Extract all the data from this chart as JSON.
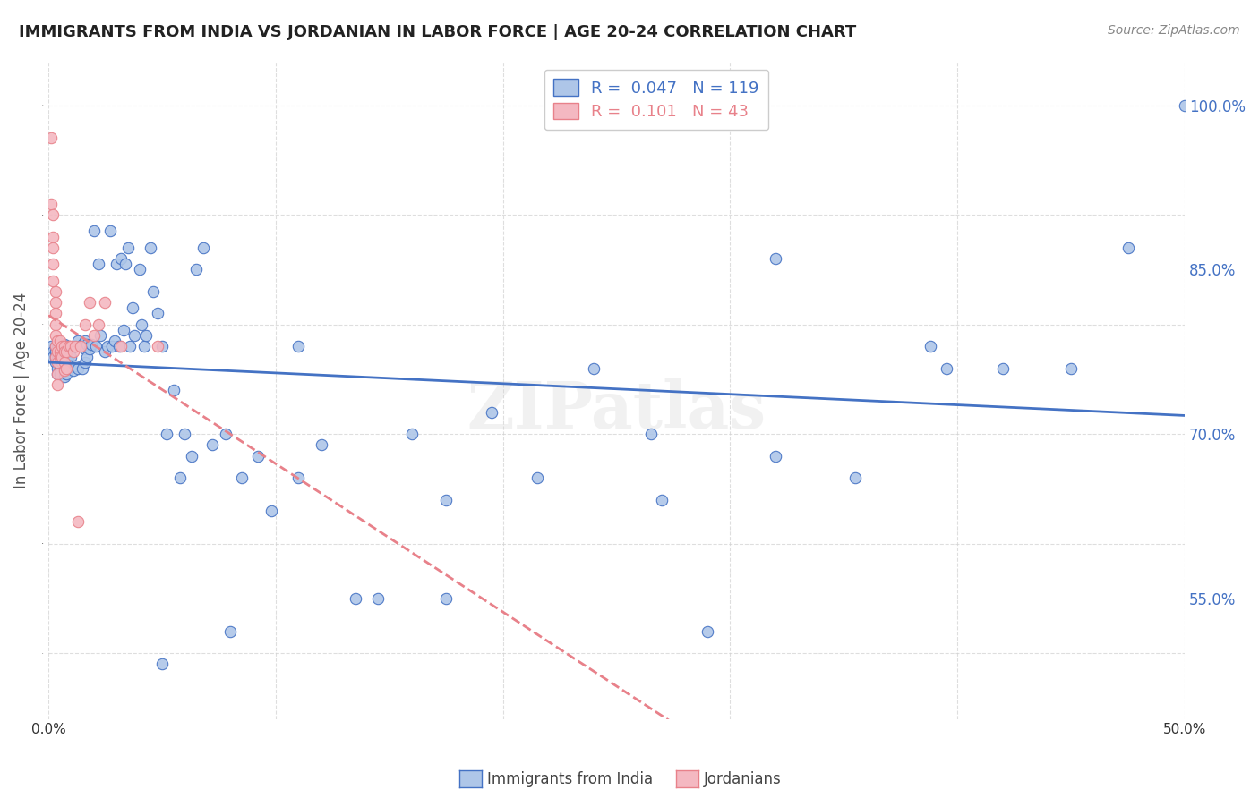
{
  "title": "IMMIGRANTS FROM INDIA VS JORDANIAN IN LABOR FORCE | AGE 20-24 CORRELATION CHART",
  "source": "Source: ZipAtlas.com",
  "ylabel": "In Labor Force | Age 20-24",
  "x_range": [
    0.0,
    0.5
  ],
  "y_range": [
    0.44,
    1.04
  ],
  "r_india": 0.047,
  "n_india": 119,
  "r_jordan": 0.101,
  "n_jordan": 43,
  "color_india": "#aec6e8",
  "color_jordan": "#f4b8c1",
  "line_color_india": "#4472c4",
  "line_color_jordan": "#e8818a",
  "legend_label_india": "Immigrants from India",
  "legend_label_jordan": "Jordanians",
  "background_color": "#ffffff",
  "grid_color": "#d0d0d0",
  "india_x": [
    0.001,
    0.002,
    0.002,
    0.003,
    0.003,
    0.003,
    0.003,
    0.004,
    0.004,
    0.004,
    0.004,
    0.004,
    0.004,
    0.005,
    0.005,
    0.005,
    0.005,
    0.005,
    0.005,
    0.006,
    0.006,
    0.006,
    0.006,
    0.007,
    0.007,
    0.007,
    0.007,
    0.007,
    0.007,
    0.008,
    0.008,
    0.008,
    0.008,
    0.008,
    0.009,
    0.009,
    0.009,
    0.01,
    0.01,
    0.01,
    0.011,
    0.011,
    0.012,
    0.012,
    0.013,
    0.013,
    0.014,
    0.015,
    0.015,
    0.016,
    0.016,
    0.016,
    0.017,
    0.017,
    0.018,
    0.019,
    0.02,
    0.021,
    0.022,
    0.023,
    0.025,
    0.026,
    0.027,
    0.028,
    0.029,
    0.03,
    0.031,
    0.032,
    0.033,
    0.034,
    0.035,
    0.036,
    0.037,
    0.038,
    0.04,
    0.041,
    0.042,
    0.043,
    0.045,
    0.046,
    0.048,
    0.05,
    0.052,
    0.055,
    0.058,
    0.06,
    0.063,
    0.065,
    0.068,
    0.072,
    0.078,
    0.085,
    0.092,
    0.098,
    0.11,
    0.12,
    0.135,
    0.145,
    0.16,
    0.175,
    0.195,
    0.215,
    0.24,
    0.265,
    0.29,
    0.32,
    0.355,
    0.388,
    0.42,
    0.45,
    0.475,
    0.5,
    0.32,
    0.395,
    0.27,
    0.175,
    0.11,
    0.08,
    0.05
  ],
  "india_y": [
    0.78,
    0.775,
    0.77,
    0.78,
    0.775,
    0.77,
    0.765,
    0.782,
    0.778,
    0.773,
    0.768,
    0.76,
    0.755,
    0.782,
    0.778,
    0.773,
    0.768,
    0.76,
    0.755,
    0.782,
    0.778,
    0.773,
    0.765,
    0.782,
    0.775,
    0.77,
    0.765,
    0.758,
    0.752,
    0.78,
    0.775,
    0.77,
    0.762,
    0.755,
    0.78,
    0.772,
    0.765,
    0.778,
    0.77,
    0.762,
    0.78,
    0.758,
    0.78,
    0.762,
    0.785,
    0.76,
    0.78,
    0.782,
    0.76,
    0.785,
    0.778,
    0.765,
    0.782,
    0.77,
    0.778,
    0.782,
    0.885,
    0.78,
    0.855,
    0.79,
    0.775,
    0.78,
    0.885,
    0.78,
    0.785,
    0.855,
    0.78,
    0.86,
    0.795,
    0.855,
    0.87,
    0.78,
    0.815,
    0.79,
    0.85,
    0.8,
    0.78,
    0.79,
    0.87,
    0.83,
    0.81,
    0.78,
    0.7,
    0.74,
    0.66,
    0.7,
    0.68,
    0.85,
    0.87,
    0.69,
    0.7,
    0.66,
    0.68,
    0.63,
    0.66,
    0.69,
    0.55,
    0.55,
    0.7,
    0.64,
    0.72,
    0.66,
    0.76,
    0.7,
    0.52,
    0.68,
    0.66,
    0.78,
    0.76,
    0.76,
    0.87,
    1.0,
    0.86,
    0.76,
    0.64,
    0.55,
    0.78,
    0.52,
    0.49
  ],
  "jordan_x": [
    0.001,
    0.001,
    0.002,
    0.002,
    0.002,
    0.002,
    0.002,
    0.003,
    0.003,
    0.003,
    0.003,
    0.003,
    0.003,
    0.003,
    0.004,
    0.004,
    0.004,
    0.004,
    0.004,
    0.005,
    0.005,
    0.005,
    0.006,
    0.006,
    0.007,
    0.007,
    0.007,
    0.007,
    0.008,
    0.008,
    0.009,
    0.01,
    0.011,
    0.012,
    0.013,
    0.014,
    0.016,
    0.018,
    0.02,
    0.022,
    0.025,
    0.032,
    0.048
  ],
  "jordan_y": [
    0.97,
    0.91,
    0.9,
    0.88,
    0.87,
    0.855,
    0.84,
    0.83,
    0.82,
    0.81,
    0.8,
    0.79,
    0.78,
    0.77,
    0.785,
    0.775,
    0.765,
    0.755,
    0.745,
    0.785,
    0.775,
    0.77,
    0.78,
    0.77,
    0.78,
    0.775,
    0.765,
    0.758,
    0.775,
    0.76,
    0.78,
    0.78,
    0.775,
    0.78,
    0.62,
    0.78,
    0.8,
    0.82,
    0.79,
    0.8,
    0.82,
    0.78,
    0.78
  ],
  "y_ticks": [
    0.5,
    0.55,
    0.7,
    0.85,
    1.0
  ],
  "y_tick_labels": [
    "",
    "55.0%",
    "70.0%",
    "85.0%",
    "100.0%"
  ]
}
